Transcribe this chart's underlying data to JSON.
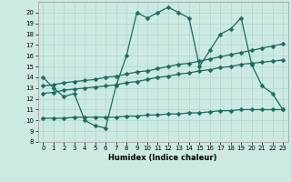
{
  "xlabel": "Humidex (Indice chaleur)",
  "xlim": [
    -0.5,
    23.5
  ],
  "ylim": [
    8,
    21
  ],
  "yticks": [
    8,
    9,
    10,
    11,
    12,
    13,
    14,
    15,
    16,
    17,
    18,
    19,
    20
  ],
  "xticks": [
    0,
    1,
    2,
    3,
    4,
    5,
    6,
    7,
    8,
    9,
    10,
    11,
    12,
    13,
    14,
    15,
    16,
    17,
    18,
    19,
    20,
    21,
    22,
    23
  ],
  "bg_color": "#cce9e4",
  "line_color": "#1a6b5e",
  "grid_color": "#b0d5cc",
  "line1": {
    "x": [
      0,
      1,
      2,
      3,
      4,
      5,
      6,
      7,
      8,
      9,
      10,
      11,
      12,
      13,
      14,
      15,
      16,
      17,
      18,
      19,
      20,
      21,
      22,
      23
    ],
    "y": [
      14,
      13,
      12.2,
      12.5,
      10,
      9.5,
      9.3,
      13.2,
      16,
      20,
      19.5,
      20,
      20.5,
      20,
      19.5,
      15,
      16.5,
      18,
      18.5,
      19.5,
      15.2,
      13.2,
      12.5,
      11
    ]
  },
  "line2": {
    "x": [
      0,
      1,
      2,
      3,
      4,
      5,
      6,
      7,
      8,
      9,
      10,
      11,
      12,
      13,
      14,
      15,
      16,
      17,
      18,
      19,
      20,
      21,
      22,
      23
    ],
    "y": [
      13.2,
      13.3,
      13.5,
      13.6,
      13.7,
      13.8,
      14.0,
      14.1,
      14.3,
      14.5,
      14.6,
      14.8,
      15.0,
      15.2,
      15.3,
      15.5,
      15.7,
      15.9,
      16.1,
      16.3,
      16.5,
      16.7,
      16.9,
      17.1
    ]
  },
  "line3": {
    "x": [
      0,
      1,
      2,
      3,
      4,
      5,
      6,
      7,
      8,
      9,
      10,
      11,
      12,
      13,
      14,
      15,
      16,
      17,
      18,
      19,
      20,
      21,
      22,
      23
    ],
    "y": [
      12.5,
      12.6,
      12.8,
      12.9,
      13.0,
      13.1,
      13.2,
      13.3,
      13.5,
      13.6,
      13.8,
      14.0,
      14.1,
      14.3,
      14.4,
      14.6,
      14.7,
      14.9,
      15.0,
      15.2,
      15.3,
      15.4,
      15.5,
      15.6
    ]
  },
  "line4": {
    "x": [
      0,
      1,
      2,
      3,
      4,
      5,
      6,
      7,
      8,
      9,
      10,
      11,
      12,
      13,
      14,
      15,
      16,
      17,
      18,
      19,
      20,
      21,
      22,
      23
    ],
    "y": [
      10.2,
      10.2,
      10.2,
      10.3,
      10.3,
      10.3,
      10.3,
      10.3,
      10.4,
      10.4,
      10.5,
      10.5,
      10.6,
      10.6,
      10.7,
      10.7,
      10.8,
      10.9,
      10.9,
      11.0,
      11.0,
      11.0,
      11.0,
      11.0
    ]
  }
}
